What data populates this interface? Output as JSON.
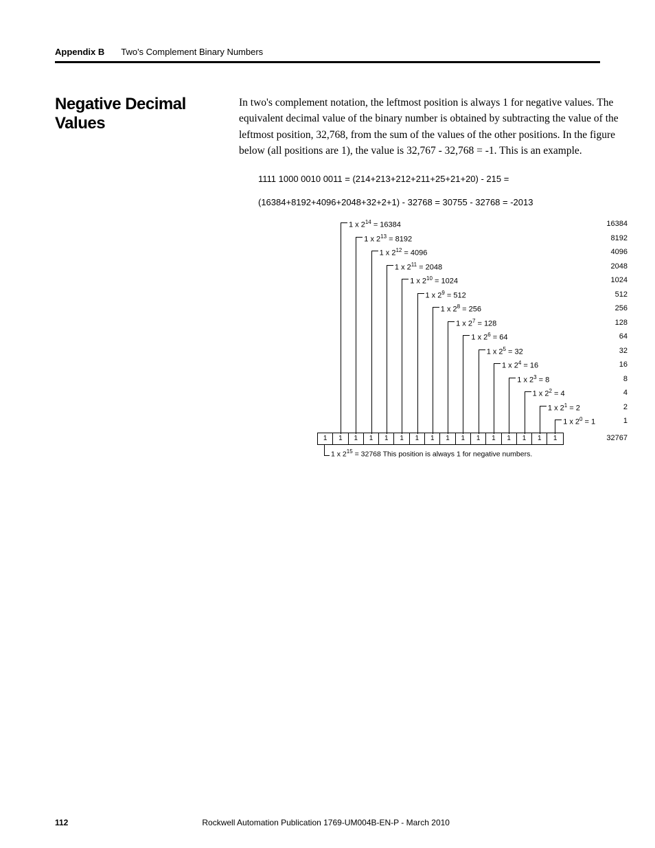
{
  "header": {
    "appendix": "Appendix B",
    "chapter": "Two's Complement Binary Numbers"
  },
  "section_heading": "Negative Decimal Values",
  "paragraph": "In two's complement notation, the leftmost position is always 1 for negative values. The equivalent decimal value of the binary number is obtained by subtracting the value of the leftmost position, 32,768, from the sum of the values of the other positions. In the figure below (all positions are 1), the value is 32,767 - 32,768 = -1. This is an example.",
  "calc_line1": "1111 1000 0010 0011 = (214+213+212+211+25+21+20) - 215 =",
  "calc_line2": "(16384+8192+4096+2048+32+2+1) - 32768 = 30755 - 32768 = -2013",
  "diagram": {
    "rows": [
      {
        "exp": "14",
        "val": "16384",
        "right": "16384"
      },
      {
        "exp": "13",
        "val": "8192",
        "right": "8192"
      },
      {
        "exp": "12",
        "val": "4096",
        "right": "4096"
      },
      {
        "exp": "11",
        "val": "2048",
        "right": "2048"
      },
      {
        "exp": "10",
        "val": "1024",
        "right": "1024"
      },
      {
        "exp": "9",
        "val": "512",
        "right": "512",
        "pad": " "
      },
      {
        "exp": "8",
        "val": "256",
        "right": "256"
      },
      {
        "exp": "7",
        "val": "128",
        "right": "128"
      },
      {
        "exp": "6",
        "val": "64",
        "right": "64"
      },
      {
        "exp": "5",
        "val": "32",
        "right": "32"
      },
      {
        "exp": "4",
        "val": "16",
        "right": "16"
      },
      {
        "exp": "3",
        "val": "8",
        "right": "8"
      },
      {
        "exp": "2",
        "val": "4",
        "right": "4"
      },
      {
        "exp": "1",
        "val": "2",
        "right": "2"
      },
      {
        "exp": "0",
        "val": "1",
        "right": "1"
      }
    ],
    "bits": [
      "1",
      "1",
      "1",
      "1",
      "1",
      "1",
      "1",
      "1",
      "1",
      "1",
      "1",
      "1",
      "1",
      "1",
      "1",
      "1"
    ],
    "sum": "32767",
    "footnote_pre": "1 x 2",
    "footnote_exp": "15",
    "footnote_post": " = 32768  This position is always 1 for negative numbers."
  },
  "footer": {
    "page": "112",
    "pub": "Rockwell Automation Publication 1769-UM004B-EN-P - March 2010"
  }
}
